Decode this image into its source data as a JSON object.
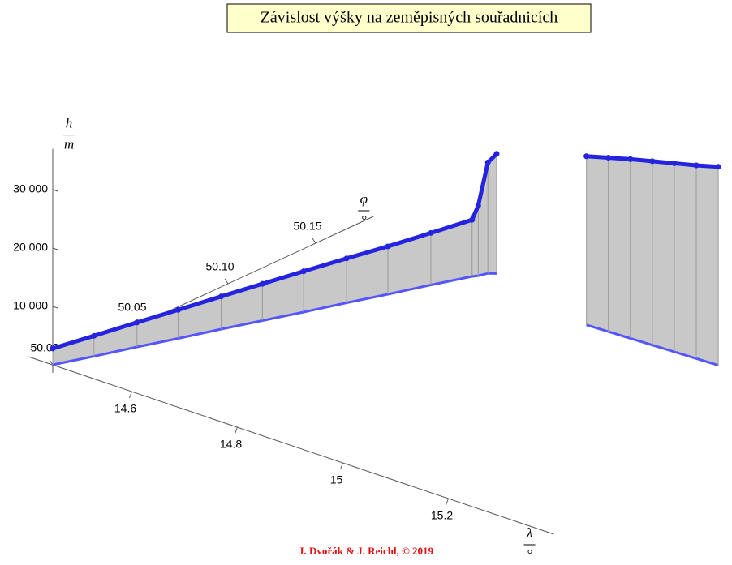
{
  "chart_data": {
    "type": "stem3d",
    "title": "Závislost výšky na zeměpisných souřadnicích",
    "credit": "J. Dvořák & J. Reichl, © 2019",
    "xlabel": {
      "symbol": "λ",
      "unit": "°"
    },
    "ylabel": {
      "symbol": "φ",
      "unit": "°"
    },
    "zlabel": {
      "symbol": "h",
      "unit": "m"
    },
    "xlim": [
      14.45,
      15.4
    ],
    "ylim": [
      50.0,
      50.183
    ],
    "zlim": [
      0,
      37000
    ],
    "xticks": [
      14.6,
      14.8,
      15.0,
      15.2
    ],
    "yticks": [
      {
        "value": 50.0,
        "label": "50.00"
      },
      {
        "value": 50.05,
        "label": "50.05"
      },
      {
        "value": 50.1,
        "label": "50.10"
      },
      {
        "value": 50.15,
        "label": "50.15"
      }
    ],
    "zticks": [
      {
        "value": 10000,
        "label": "10 000"
      },
      {
        "value": 20000,
        "label": "20 000"
      },
      {
        "value": 30000,
        "label": "30 000"
      }
    ],
    "series": [
      {
        "color": "#2323e0",
        "stem_color": "#9a9a9a",
        "x": [
          14.45,
          14.475,
          14.5,
          14.525,
          14.55,
          14.575,
          14.6,
          14.625,
          14.65,
          14.675,
          14.7,
          14.705,
          14.71,
          14.72
        ],
        "y": [
          50.0,
          50.016,
          50.033,
          50.049,
          50.066,
          50.082,
          50.098,
          50.115,
          50.131,
          50.148,
          50.164,
          50.166,
          50.17,
          50.172
        ],
        "z": [
          2800,
          3500,
          4200,
          4900,
          5600,
          6300,
          7000,
          7600,
          8200,
          8900,
          9700,
          12000,
          19000,
          20500
        ]
      },
      {
        "color": "#2323e0",
        "stem_color": "#9a9a9a",
        "x": [
          14.94,
          14.98,
          15.02,
          15.06,
          15.1,
          15.14,
          15.18
        ],
        "y": [
          50.157,
          50.1575,
          50.158,
          50.1585,
          50.159,
          50.1595,
          50.16
        ],
        "z": [
          28900,
          29800,
          30700,
          31500,
          32300,
          33100,
          34000
        ]
      }
    ]
  }
}
